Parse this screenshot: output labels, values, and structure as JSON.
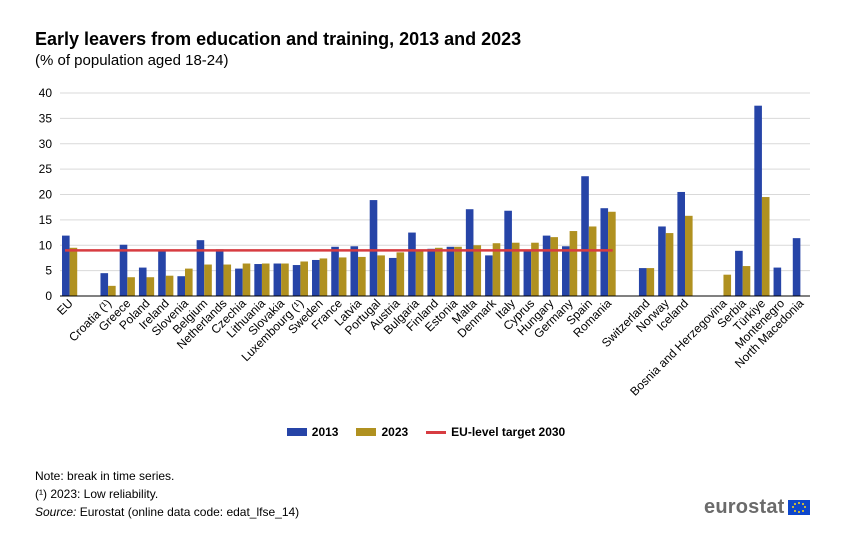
{
  "chart_data": {
    "type": "bar",
    "title": "Early leavers from education and training, 2013 and 2023",
    "subtitle": "(% of population aged 18-24)",
    "xlabel": "",
    "ylabel": "",
    "ylim": [
      0,
      40
    ],
    "yticks": [
      0,
      5,
      10,
      15,
      20,
      25,
      30,
      35,
      40
    ],
    "grid": true,
    "legend_position": "bottom",
    "categories": [
      "EU",
      "",
      "Croatia (¹)",
      "Greece",
      "Poland",
      "Ireland",
      "Slovenia",
      "Belgium",
      "Netherlands",
      "Czechia",
      "Lithuania",
      "Slovakia",
      "Luxembourg (¹)",
      "Sweden",
      "France",
      "Latvia",
      "Portugal",
      "Austria",
      "Bulgaria",
      "Finland",
      "Estonia",
      "Malta",
      "Denmark",
      "Italy",
      "Cyprus",
      "Hungary",
      "Germany",
      "Spain",
      "Romania",
      "",
      "Switzerland",
      "Norway",
      "Iceland",
      "",
      "Bosnia and Herzegovina",
      "Serbia",
      "Türkiye",
      "Montenegro",
      "North Macedonia"
    ],
    "series": [
      {
        "name": "2013",
        "color": "#2644a7",
        "values": [
          11.9,
          null,
          4.5,
          10.1,
          5.6,
          8.9,
          3.9,
          11.0,
          9.2,
          5.4,
          6.3,
          6.4,
          6.1,
          7.1,
          9.7,
          9.8,
          18.9,
          7.5,
          12.5,
          9.3,
          9.7,
          17.1,
          8.0,
          16.8,
          9.1,
          11.9,
          9.8,
          23.6,
          17.3,
          null,
          5.5,
          13.7,
          20.5,
          null,
          null,
          8.9,
          37.5,
          5.6,
          11.4
        ]
      },
      {
        "name": "2023",
        "color": "#b09120",
        "values": [
          9.5,
          null,
          2.0,
          3.7,
          3.7,
          4.0,
          5.4,
          6.2,
          6.2,
          6.4,
          6.4,
          6.4,
          6.8,
          7.4,
          7.6,
          7.7,
          8.0,
          8.6,
          9.1,
          9.5,
          9.7,
          10.0,
          10.4,
          10.5,
          10.5,
          11.6,
          12.8,
          13.7,
          16.6,
          null,
          5.5,
          12.4,
          15.8,
          null,
          4.2,
          5.9,
          19.5,
          null,
          null
        ]
      }
    ],
    "target_line": {
      "name": "EU-level target 2030",
      "value": 9.0,
      "color": "#d73c41",
      "range_from": "EU",
      "range_to": "Romania"
    }
  },
  "legend": {
    "item_2013": "2013",
    "item_2023": "2023",
    "item_target": "EU-level target 2030"
  },
  "notes": {
    "note": "Note: break in time series.",
    "footnote": "(¹) 2023: Low reliability.",
    "source_label": "Source:",
    "source_text": " Eurostat (online data code: edat_lfse_14)"
  },
  "logo": {
    "text": "eurostat"
  }
}
